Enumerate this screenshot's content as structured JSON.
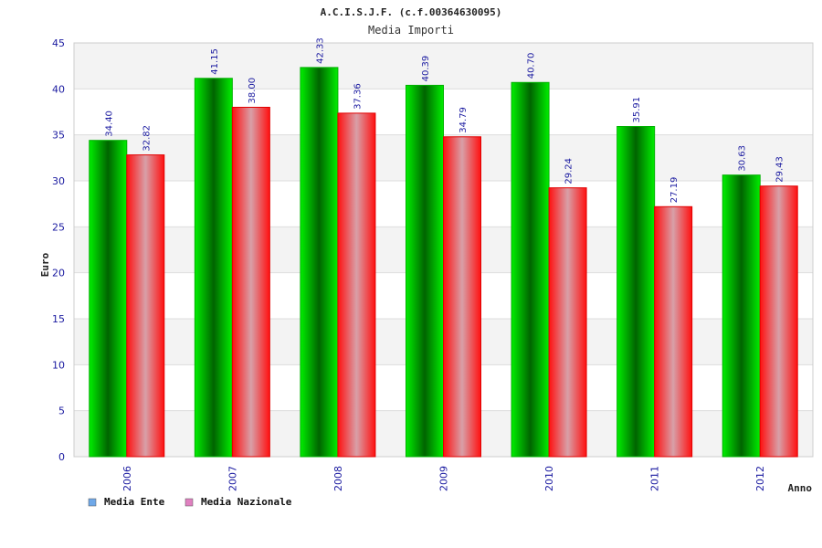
{
  "chart_data": {
    "type": "bar",
    "title": "A.C.I.S.J.F. (c.f.00364630095)",
    "subtitle": "Media Importi",
    "xlabel": "Anno",
    "ylabel": "Euro",
    "categories": [
      "2006",
      "2007",
      "2008",
      "2009",
      "2010",
      "2011",
      "2012"
    ],
    "ylim": [
      0,
      45
    ],
    "yticks": [
      0,
      5,
      10,
      15,
      20,
      25,
      30,
      35,
      40,
      45
    ],
    "grid": true,
    "legend_position": "bottom-left",
    "series": [
      {
        "name": "Media Ente",
        "values": [
          34.4,
          41.15,
          42.33,
          40.39,
          40.7,
          35.91,
          30.63
        ],
        "labels": [
          "34.40",
          "41.15",
          "42.33",
          "40.39",
          "40.70",
          "35.91",
          "30.63"
        ],
        "color": "#00c000",
        "legend_color": "#6fa8e8"
      },
      {
        "name": "Media Nazionale",
        "values": [
          32.82,
          38.0,
          37.36,
          34.79,
          29.24,
          27.19,
          29.43
        ],
        "labels": [
          "32.82",
          "38.00",
          "37.36",
          "34.79",
          "29.24",
          "27.19",
          "29.43"
        ],
        "color": "#ff1a1a",
        "legend_color": "#e080c0"
      }
    ]
  }
}
